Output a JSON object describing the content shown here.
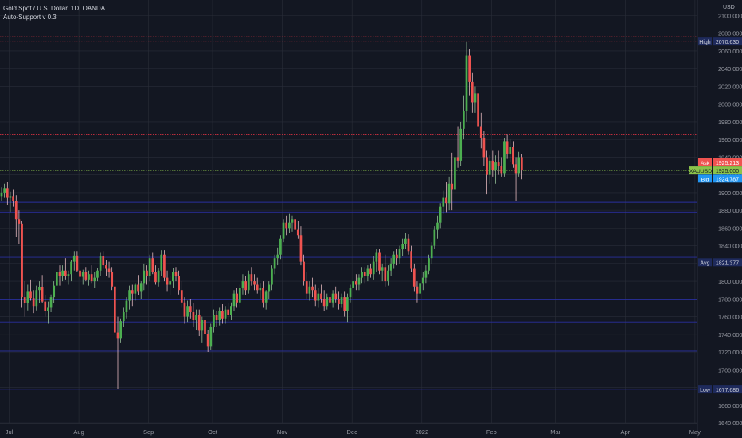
{
  "header": {
    "symbol_title": "Gold Spot / U.S. Dollar, 1D, OANDA",
    "indicator": "Auto-Support v 0.3",
    "currency": "USD"
  },
  "colors": {
    "background": "#131722",
    "grid": "#2a2e39",
    "up": "#26a69a",
    "up_body": "#4caf50",
    "down": "#ef5350",
    "support_blue": "#2a2f9e",
    "resistance_red": "#f23645",
    "current_green": "#8bc34a"
  },
  "chart_data": {
    "type": "candlestick",
    "title": "Gold Spot / U.S. Dollar, 1D, OANDA",
    "ylim": [
      1640,
      2100
    ],
    "y_ticks": [
      "1640.000",
      "1660.000",
      "1680.000",
      "1700.000",
      "1720.000",
      "1740.000",
      "1760.000",
      "1780.000",
      "1800.000",
      "1820.000",
      "1840.000",
      "1860.000",
      "1880.000",
      "1900.000",
      "1920.000",
      "1940.000",
      "1960.000",
      "1980.000",
      "2000.000",
      "2020.000",
      "2040.000",
      "2060.000",
      "2080.000",
      "2100.000"
    ],
    "x_ticks": [
      "Jul",
      "Aug",
      "Sep",
      "Oct",
      "Nov",
      "Dec",
      "2022",
      "Feb",
      "Mar",
      "Apr",
      "May"
    ],
    "x_tick_positions": [
      2.6,
      26.6,
      50.6,
      72.6,
      96.6,
      120.6,
      144.6,
      168.6,
      190.6,
      214.6,
      238.6
    ],
    "price_tags": [
      {
        "label": "High",
        "value": 2070.63,
        "text": "2070.630",
        "color": "#1e2a5c"
      },
      {
        "label": "Ask",
        "value": 1925.213,
        "text": "1925.213",
        "color": "#ef5350"
      },
      {
        "label": "XAUUSD",
        "value": 1925.0,
        "text": "1925.000",
        "color": "#8bc34a"
      },
      {
        "label": "Bid",
        "value": 1924.787,
        "text": "1924.787",
        "color": "#2196f3"
      },
      {
        "label": "Avg",
        "value": 1821.377,
        "text": "1821.377",
        "color": "#1e2a5c"
      },
      {
        "label": "Low",
        "value": 1677.686,
        "text": "1677.686",
        "color": "#1e2a5c"
      }
    ],
    "resistance_levels": [
      2076,
      2071,
      1966
    ],
    "support_levels": [
      1889,
      1878,
      1827,
      1806,
      1779,
      1754,
      1721,
      1678
    ],
    "current_level": 1925,
    "candles": [
      [
        1896,
        1906,
        1890,
        1900
      ],
      [
        1900,
        1910,
        1894,
        1905
      ],
      [
        1905,
        1912,
        1886,
        1894
      ],
      [
        1894,
        1901,
        1878,
        1896
      ],
      [
        1896,
        1904,
        1884,
        1890
      ],
      [
        1890,
        1897,
        1850,
        1870
      ],
      [
        1870,
        1880,
        1842,
        1865
      ],
      [
        1865,
        1868,
        1770,
        1782
      ],
      [
        1782,
        1800,
        1760,
        1775
      ],
      [
        1775,
        1796,
        1767,
        1788
      ],
      [
        1788,
        1802,
        1778,
        1781
      ],
      [
        1781,
        1790,
        1764,
        1772
      ],
      [
        1772,
        1795,
        1767,
        1790
      ],
      [
        1790,
        1800,
        1775,
        1793
      ],
      [
        1793,
        1807,
        1775,
        1777
      ],
      [
        1777,
        1784,
        1760,
        1766
      ],
      [
        1766,
        1777,
        1752,
        1770
      ],
      [
        1770,
        1785,
        1765,
        1782
      ],
      [
        1782,
        1800,
        1775,
        1795
      ],
      [
        1795,
        1815,
        1790,
        1810
      ],
      [
        1810,
        1818,
        1795,
        1806
      ],
      [
        1806,
        1818,
        1800,
        1812
      ],
      [
        1812,
        1826,
        1802,
        1806
      ],
      [
        1806,
        1812,
        1796,
        1808
      ],
      [
        1808,
        1824,
        1800,
        1822
      ],
      [
        1822,
        1834,
        1812,
        1829
      ],
      [
        1829,
        1834,
        1810,
        1812
      ],
      [
        1812,
        1822,
        1803,
        1805
      ],
      [
        1805,
        1813,
        1796,
        1810
      ],
      [
        1810,
        1816,
        1800,
        1802
      ],
      [
        1802,
        1812,
        1795,
        1808
      ],
      [
        1808,
        1818,
        1798,
        1800
      ],
      [
        1800,
        1810,
        1792,
        1804
      ],
      [
        1804,
        1815,
        1800,
        1812
      ],
      [
        1812,
        1832,
        1806,
        1828
      ],
      [
        1828,
        1834,
        1814,
        1818
      ],
      [
        1818,
        1824,
        1806,
        1814
      ],
      [
        1814,
        1822,
        1804,
        1810
      ],
      [
        1810,
        1816,
        1790,
        1794
      ],
      [
        1794,
        1805,
        1730,
        1742
      ],
      [
        1742,
        1760,
        1678,
        1735
      ],
      [
        1735,
        1758,
        1730,
        1755
      ],
      [
        1755,
        1770,
        1748,
        1765
      ],
      [
        1765,
        1782,
        1758,
        1778
      ],
      [
        1778,
        1795,
        1768,
        1790
      ],
      [
        1790,
        1796,
        1772,
        1786
      ],
      [
        1786,
        1798,
        1778,
        1796
      ],
      [
        1796,
        1807,
        1784,
        1788
      ],
      [
        1788,
        1800,
        1780,
        1798
      ],
      [
        1798,
        1820,
        1790,
        1812
      ],
      [
        1812,
        1818,
        1796,
        1806
      ],
      [
        1806,
        1830,
        1800,
        1826
      ],
      [
        1826,
        1832,
        1808,
        1810
      ],
      [
        1810,
        1818,
        1796,
        1799
      ],
      [
        1799,
        1815,
        1794,
        1812
      ],
      [
        1812,
        1835,
        1806,
        1830
      ],
      [
        1830,
        1835,
        1800,
        1804
      ],
      [
        1804,
        1812,
        1788,
        1796
      ],
      [
        1796,
        1806,
        1784,
        1800
      ],
      [
        1800,
        1815,
        1792,
        1810
      ],
      [
        1810,
        1816,
        1800,
        1806
      ],
      [
        1806,
        1812,
        1785,
        1790
      ],
      [
        1790,
        1800,
        1770,
        1776
      ],
      [
        1776,
        1782,
        1752,
        1760
      ],
      [
        1760,
        1778,
        1754,
        1772
      ],
      [
        1772,
        1780,
        1758,
        1765
      ],
      [
        1765,
        1775,
        1748,
        1756
      ],
      [
        1756,
        1768,
        1745,
        1762
      ],
      [
        1762,
        1768,
        1738,
        1744
      ],
      [
        1744,
        1760,
        1730,
        1756
      ],
      [
        1756,
        1762,
        1735,
        1740
      ],
      [
        1740,
        1745,
        1720,
        1726
      ],
      [
        1726,
        1752,
        1722,
        1748
      ],
      [
        1748,
        1768,
        1742,
        1762
      ],
      [
        1762,
        1766,
        1748,
        1756
      ],
      [
        1756,
        1770,
        1750,
        1766
      ],
      [
        1766,
        1774,
        1752,
        1758
      ],
      [
        1758,
        1772,
        1752,
        1768
      ],
      [
        1768,
        1775,
        1755,
        1762
      ],
      [
        1762,
        1776,
        1756,
        1772
      ],
      [
        1772,
        1790,
        1766,
        1786
      ],
      [
        1786,
        1792,
        1770,
        1776
      ],
      [
        1776,
        1796,
        1770,
        1792
      ],
      [
        1792,
        1808,
        1785,
        1800
      ],
      [
        1800,
        1806,
        1784,
        1790
      ],
      [
        1790,
        1812,
        1786,
        1808
      ],
      [
        1808,
        1816,
        1795,
        1800
      ],
      [
        1800,
        1808,
        1790,
        1796
      ],
      [
        1796,
        1804,
        1786,
        1790
      ],
      [
        1790,
        1798,
        1780,
        1792
      ],
      [
        1792,
        1800,
        1770,
        1776
      ],
      [
        1776,
        1790,
        1768,
        1788
      ],
      [
        1788,
        1800,
        1780,
        1796
      ],
      [
        1796,
        1818,
        1790,
        1814
      ],
      [
        1814,
        1830,
        1808,
        1826
      ],
      [
        1826,
        1838,
        1818,
        1830
      ],
      [
        1830,
        1852,
        1825,
        1848
      ],
      [
        1848,
        1870,
        1844,
        1866
      ],
      [
        1866,
        1874,
        1852,
        1860
      ],
      [
        1860,
        1876,
        1854,
        1866
      ],
      [
        1866,
        1874,
        1856,
        1870
      ],
      [
        1870,
        1875,
        1852,
        1858
      ],
      [
        1858,
        1868,
        1848,
        1852
      ],
      [
        1852,
        1862,
        1818,
        1822
      ],
      [
        1822,
        1830,
        1795,
        1800
      ],
      [
        1800,
        1810,
        1780,
        1786
      ],
      [
        1786,
        1800,
        1778,
        1794
      ],
      [
        1794,
        1804,
        1782,
        1790
      ],
      [
        1790,
        1796,
        1772,
        1778
      ],
      [
        1778,
        1792,
        1770,
        1786
      ],
      [
        1786,
        1796,
        1776,
        1780
      ],
      [
        1780,
        1790,
        1766,
        1772
      ],
      [
        1772,
        1786,
        1768,
        1782
      ],
      [
        1782,
        1792,
        1772,
        1776
      ],
      [
        1776,
        1790,
        1770,
        1786
      ],
      [
        1786,
        1794,
        1776,
        1780
      ],
      [
        1780,
        1788,
        1768,
        1774
      ],
      [
        1774,
        1786,
        1770,
        1782
      ],
      [
        1782,
        1788,
        1760,
        1766
      ],
      [
        1766,
        1786,
        1754,
        1782
      ],
      [
        1782,
        1796,
        1776,
        1792
      ],
      [
        1792,
        1806,
        1786,
        1800
      ],
      [
        1800,
        1808,
        1790,
        1796
      ],
      [
        1796,
        1808,
        1790,
        1804
      ],
      [
        1804,
        1816,
        1798,
        1810
      ],
      [
        1810,
        1816,
        1798,
        1806
      ],
      [
        1806,
        1818,
        1800,
        1814
      ],
      [
        1814,
        1820,
        1804,
        1808
      ],
      [
        1808,
        1828,
        1802,
        1822
      ],
      [
        1822,
        1836,
        1810,
        1832
      ],
      [
        1832,
        1836,
        1808,
        1812
      ],
      [
        1812,
        1820,
        1800,
        1816
      ],
      [
        1816,
        1830,
        1794,
        1800
      ],
      [
        1800,
        1818,
        1795,
        1812
      ],
      [
        1812,
        1826,
        1806,
        1820
      ],
      [
        1820,
        1834,
        1814,
        1830
      ],
      [
        1830,
        1836,
        1818,
        1826
      ],
      [
        1826,
        1840,
        1820,
        1836
      ],
      [
        1836,
        1848,
        1828,
        1842
      ],
      [
        1842,
        1854,
        1836,
        1848
      ],
      [
        1848,
        1853,
        1830,
        1834
      ],
      [
        1834,
        1840,
        1810,
        1814
      ],
      [
        1814,
        1820,
        1788,
        1794
      ],
      [
        1794,
        1800,
        1776,
        1786
      ],
      [
        1786,
        1802,
        1780,
        1798
      ],
      [
        1798,
        1810,
        1790,
        1804
      ],
      [
        1804,
        1818,
        1798,
        1812
      ],
      [
        1812,
        1830,
        1808,
        1826
      ],
      [
        1826,
        1844,
        1820,
        1840
      ],
      [
        1840,
        1862,
        1836,
        1858
      ],
      [
        1858,
        1874,
        1848,
        1866
      ],
      [
        1866,
        1888,
        1860,
        1884
      ],
      [
        1884,
        1902,
        1876,
        1894
      ],
      [
        1894,
        1912,
        1878,
        1888
      ],
      [
        1888,
        1918,
        1880,
        1910
      ],
      [
        1910,
        1945,
        1880,
        1904
      ],
      [
        1904,
        1950,
        1896,
        1940
      ],
      [
        1940,
        1975,
        1928,
        1936
      ],
      [
        1936,
        1980,
        1930,
        1972
      ],
      [
        1972,
        2010,
        1960,
        1992
      ],
      [
        1992,
        2070,
        1980,
        2055
      ],
      [
        2055,
        2062,
        2010,
        2025
      ],
      [
        2025,
        2035,
        1990,
        2002
      ],
      [
        2002,
        2020,
        1990,
        2012
      ],
      [
        2012,
        2015,
        1965,
        1975
      ],
      [
        1975,
        1990,
        1950,
        1962
      ],
      [
        1962,
        1970,
        1930,
        1940
      ],
      [
        1940,
        1948,
        1898,
        1920
      ],
      [
        1920,
        1942,
        1910,
        1936
      ],
      [
        1936,
        1948,
        1918,
        1926
      ],
      [
        1926,
        1942,
        1910,
        1934
      ],
      [
        1934,
        1948,
        1920,
        1930
      ],
      [
        1930,
        1940,
        1918,
        1922
      ],
      [
        1922,
        1962,
        1918,
        1958
      ],
      [
        1958,
        1966,
        1938,
        1944
      ],
      [
        1944,
        1960,
        1935,
        1952
      ],
      [
        1952,
        1958,
        1928,
        1932
      ],
      [
        1932,
        1940,
        1890,
        1922
      ],
      [
        1922,
        1946,
        1918,
        1940
      ],
      [
        1940,
        1944,
        1915,
        1925
      ]
    ]
  }
}
